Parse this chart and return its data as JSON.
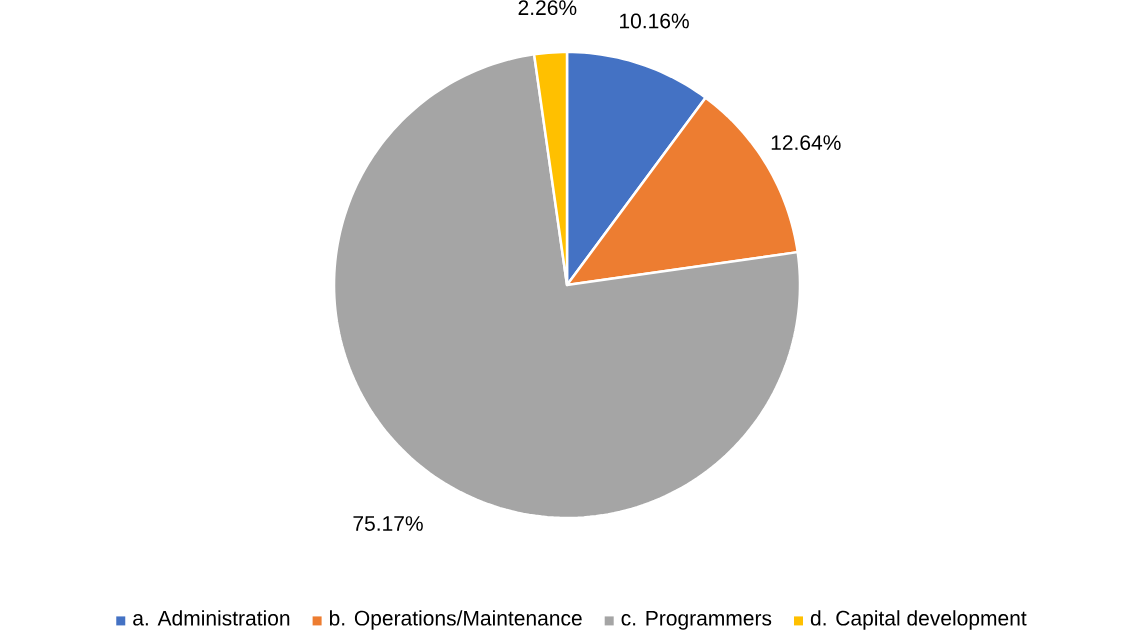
{
  "chart_data": {
    "type": "pie",
    "categories": [
      "a. Administration",
      "b. Operations/Maintenance",
      "c. Programmers",
      "d. Capital development"
    ],
    "values": [
      10.16,
      12.64,
      75.17,
      2.26
    ],
    "value_labels": [
      "10.16%",
      "12.64%",
      "75.17%",
      "2.26%"
    ],
    "colors": [
      "#4472c4",
      "#ed7d31",
      "#a5a5a5",
      "#ffc000"
    ],
    "legend": "bottom"
  }
}
